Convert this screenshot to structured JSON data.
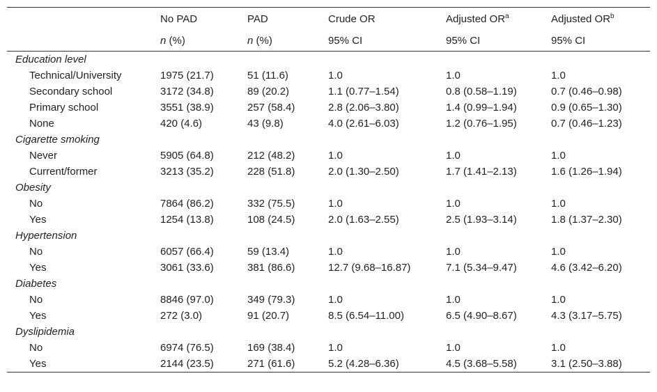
{
  "header": {
    "columns": [
      {
        "text": "No PAD"
      },
      {
        "text": "PAD"
      },
      {
        "text": "Crude OR"
      },
      {
        "text": "Adjusted OR",
        "sup": "a"
      },
      {
        "text": "Adjusted OR",
        "sup": "b"
      }
    ],
    "subcolumns": [
      {
        "italic": "n",
        "text": " (%)"
      },
      {
        "italic": "n",
        "text": " (%)"
      },
      {
        "text": "95% CI"
      },
      {
        "text": "95% CI"
      },
      {
        "text": "95% CI"
      }
    ]
  },
  "sections": [
    {
      "name": "Education level",
      "rows": [
        [
          "Technical/University",
          "1975 (21.7)",
          "51 (11.6)",
          "1.0",
          "1.0",
          "1.0"
        ],
        [
          "Secondary school",
          "3172 (34.8)",
          "89 (20.2)",
          "1.1 (0.77–1.54)",
          "0.8 (0.58–1.19)",
          "0.7 (0.46–0.98)"
        ],
        [
          "Primary school",
          "3551 (38.9)",
          "257 (58.4)",
          "2.8 (2.06–3.80)",
          "1.4 (0.99–1.94)",
          "0.9 (0.65–1.30)"
        ],
        [
          "None",
          "420 (4.6)",
          "43 (9.8)",
          "4.0 (2.61–6.03)",
          "1.2 (0.76–1.95)",
          "0.7 (0.46–1.23)"
        ]
      ]
    },
    {
      "name": "Cigarette smoking",
      "rows": [
        [
          "Never",
          "5905 (64.8)",
          "212 (48.2)",
          "1.0",
          "1.0",
          "1.0"
        ],
        [
          "Current/former",
          "3213 (35.2)",
          "228 (51.8)",
          "2.0 (1.30–2.50)",
          "1.7 (1.41–2.13)",
          "1.6 (1.26–1.94)"
        ]
      ]
    },
    {
      "name": "Obesity",
      "rows": [
        [
          "No",
          "7864 (86.2)",
          "332 (75.5)",
          "1.0",
          "1.0",
          "1.0"
        ],
        [
          "Yes",
          "1254 (13.8)",
          "108 (24.5)",
          "2.0 (1.63–2.55)",
          "2.5 (1.93–3.14)",
          "1.8 (1.37–2.30)"
        ]
      ]
    },
    {
      "name": "Hypertension",
      "rows": [
        [
          "No",
          "6057 (66.4)",
          "59 (13.4)",
          "1.0",
          "1.0",
          "1.0"
        ],
        [
          "Yes",
          "3061 (33.6)",
          "381 (86.6)",
          "12.7 (9.68–16.87)",
          "7.1 (5.34–9.47)",
          "4.6 (3.42–6.20)"
        ]
      ]
    },
    {
      "name": "Diabetes",
      "rows": [
        [
          "No",
          "8846 (97.0)",
          "349 (79.3)",
          "1.0",
          "1.0",
          "1.0"
        ],
        [
          "Yes",
          "272 (3.0)",
          "91 (20.7)",
          "8.5 (6.54–11.00)",
          "6.5 (4.90–8.67)",
          "4.3 (3.17–5.75)"
        ]
      ]
    },
    {
      "name": "Dyslipidemia",
      "rows": [
        [
          "No",
          "6974 (76.5)",
          "169 (38.4)",
          "1.0",
          "1.0",
          "1.0"
        ],
        [
          "Yes",
          "2144 (23.5)",
          "271 (61.6)",
          "5.2 (4.28–6.36)",
          "4.5 (3.68–5.58)",
          "3.1 (2.50–3.88)"
        ]
      ]
    }
  ]
}
